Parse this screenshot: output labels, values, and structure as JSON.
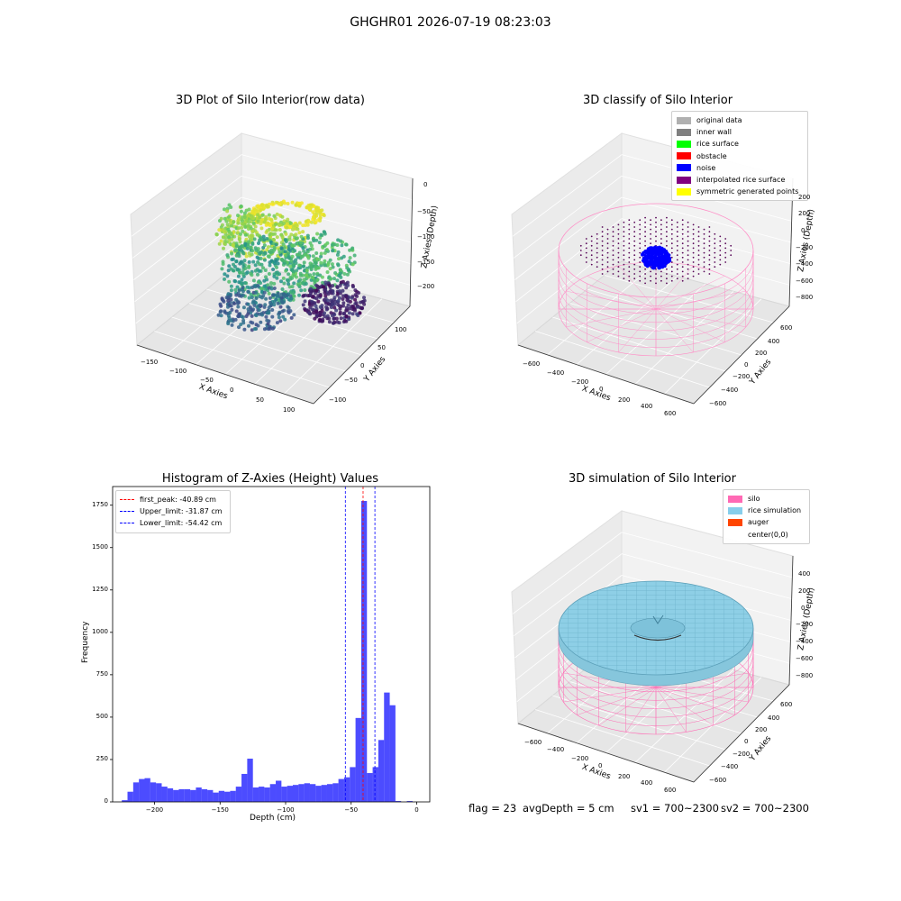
{
  "figure": {
    "suptitle": "GHGHR01 2026-07-19 08:23:03"
  },
  "footer": {
    "flag": "flag = 23",
    "avg_depth": "avgDepth = 5 cm",
    "sv1": "sv1 = 700~2300",
    "sv2": "sv2 = 700~2300"
  },
  "chart_data": [
    {
      "type": "scatter",
      "projection": "3d",
      "title": "3D Plot of Silo Interior(row data)",
      "xlabel": "X Axies",
      "ylabel": "Y Axies",
      "zlabel": "Z Axies (Depth)",
      "x_ticks": [
        "−150",
        "−100",
        "−50",
        "0",
        "50",
        "100"
      ],
      "y_ticks": [
        "−100",
        "−50",
        "0",
        "50",
        "100"
      ],
      "z_ticks": [
        "0",
        "−50",
        "−100",
        "−150",
        "−200"
      ],
      "xlim": [
        -175,
        125
      ],
      "ylim": [
        -125,
        125
      ],
      "zlim": [
        -225,
        0
      ],
      "colormap": "viridis (by depth)",
      "grid": true
    },
    {
      "type": "scatter",
      "projection": "3d",
      "title": "3D classify of Silo Interior",
      "xlabel": "X Axies",
      "ylabel": "Y Axies",
      "zlabel": "Z Axies (Depth)",
      "x_ticks": [
        "−600",
        "−400",
        "−200",
        "0",
        "200",
        "400",
        "600"
      ],
      "y_ticks": [
        "−600",
        "−400",
        "−200",
        "0",
        "200",
        "400",
        "600"
      ],
      "z_ticks": [
        "200",
        "0",
        "−200",
        "−400",
        "−600",
        "−800"
      ],
      "grid": true,
      "legend_position": "top-right",
      "legend": [
        {
          "label": "original data",
          "color": "#b0b0b0"
        },
        {
          "label": "inner wall",
          "color": "#808080"
        },
        {
          "label": "rice surface",
          "color": "#00ff00"
        },
        {
          "label": "obstacle",
          "color": "#ff0000"
        },
        {
          "label": "noise",
          "color": "#0000ff"
        },
        {
          "label": "interpolated rice surface",
          "color": "#800080"
        },
        {
          "label": "symmetric generated points",
          "color": "#ffff00"
        }
      ]
    },
    {
      "type": "bar",
      "title": "Histogram of Z-Axies (Height) Values",
      "xlabel": "Depth (cm)",
      "ylabel": "Frequency",
      "xlim": [
        -232,
        10
      ],
      "ylim": [
        0,
        1860
      ],
      "x_ticks": [
        -200,
        -150,
        -100,
        -50,
        0
      ],
      "x_tick_labels": [
        "−200",
        "−150",
        "−100",
        "−50",
        "0"
      ],
      "y_ticks": [
        0,
        250,
        500,
        750,
        1000,
        1250,
        1500,
        1750
      ],
      "bar_color": "#0000ff",
      "bin_width": 4.35,
      "bin_start": -225,
      "values": [
        10,
        60,
        115,
        135,
        140,
        115,
        110,
        90,
        80,
        70,
        75,
        75,
        70,
        85,
        75,
        70,
        55,
        65,
        60,
        65,
        90,
        165,
        255,
        85,
        90,
        85,
        105,
        125,
        90,
        95,
        100,
        105,
        110,
        105,
        95,
        100,
        105,
        110,
        135,
        145,
        205,
        495,
        1775,
        170,
        205,
        365,
        645,
        570,
        5,
        0,
        5
      ],
      "vlines": [
        {
          "label": "first_peak: -40.89 cm",
          "x": -40.89,
          "color": "#ff0000"
        },
        {
          "label": "Upper_limit: -31.87 cm",
          "x": -31.87,
          "color": "#0000ff"
        },
        {
          "label": "Lower_limit: -54.42 cm",
          "x": -54.42,
          "color": "#0000ff"
        }
      ],
      "legend_position": "top-left",
      "grid": false
    },
    {
      "type": "surface",
      "projection": "3d",
      "title": "3D simulation of Silo Interior",
      "xlabel": "X Axies",
      "ylabel": "Y Axies",
      "zlabel": "Z Axies (Depth)",
      "x_ticks": [
        "−600",
        "−400",
        "−200",
        "0",
        "200",
        "400",
        "600"
      ],
      "y_ticks": [
        "−600",
        "−400",
        "−200",
        "0",
        "200",
        "400",
        "600"
      ],
      "z_ticks": [
        "400",
        "200",
        "0",
        "−200",
        "−400",
        "−600",
        "−800"
      ],
      "grid": true,
      "legend_position": "top-right",
      "legend": [
        {
          "label": "silo",
          "color": "#ff69b4"
        },
        {
          "label": "rice simulation",
          "color": "#87ceeb"
        },
        {
          "label": "auger",
          "color": "#ff4500"
        },
        {
          "label": "center(0,0)",
          "color": "#ffffff"
        }
      ]
    }
  ]
}
